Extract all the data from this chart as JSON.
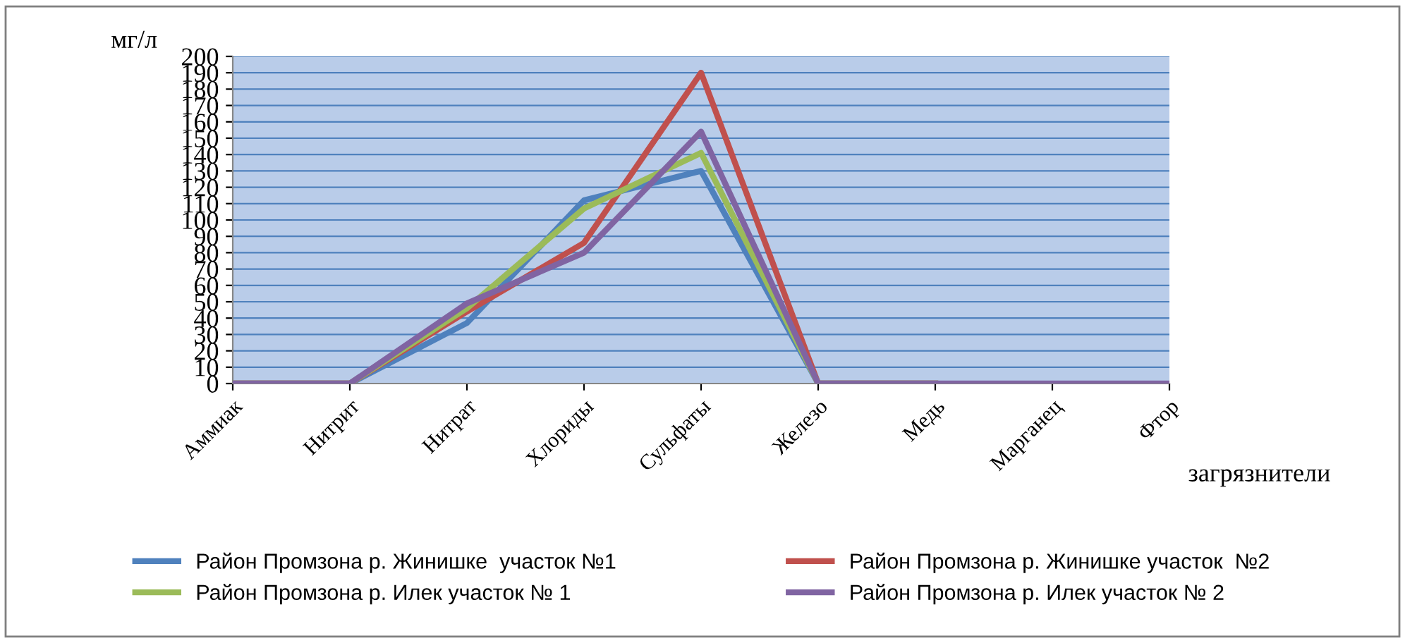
{
  "chart_data": {
    "type": "line",
    "xlabel": "загрязнители",
    "ylabel": "мг/л",
    "categories": [
      "Аммиак",
      "Нитрит",
      "Нитрат",
      "Хлориды",
      "Сульфаты",
      "Железо",
      "Медь",
      "Марганец",
      "Фтор"
    ],
    "series": [
      {
        "name": "Район Промзона р. Жинишке  участок №1",
        "color": "#4f81bd",
        "values": [
          0,
          0,
          37,
          112,
          130,
          0,
          0,
          null,
          null
        ]
      },
      {
        "name": "Район Промзона р. Жинишке участок  №2",
        "color": "#c0504d",
        "values": [
          0,
          0,
          44,
          86,
          190,
          0,
          0,
          null,
          null
        ]
      },
      {
        "name": "Район Промзона р. Илек участок № 1",
        "color": "#9bbb59",
        "values": [
          0,
          0,
          46,
          107,
          141,
          0,
          0,
          null,
          null
        ]
      },
      {
        "name": "Район Промзона р. Илек участок № 2",
        "color": "#8064a2",
        "values": [
          0,
          0,
          49,
          80,
          154,
          0,
          0,
          0,
          0
        ]
      }
    ],
    "ylim": [
      0,
      200
    ],
    "yticks": [
      0,
      10,
      20,
      30,
      40,
      50,
      60,
      70,
      80,
      90,
      100,
      110,
      120,
      130,
      140,
      150,
      160,
      170,
      180,
      190,
      200
    ],
    "grid": "y",
    "legend": "bottom",
    "marker": "none",
    "line_style": "solid"
  }
}
